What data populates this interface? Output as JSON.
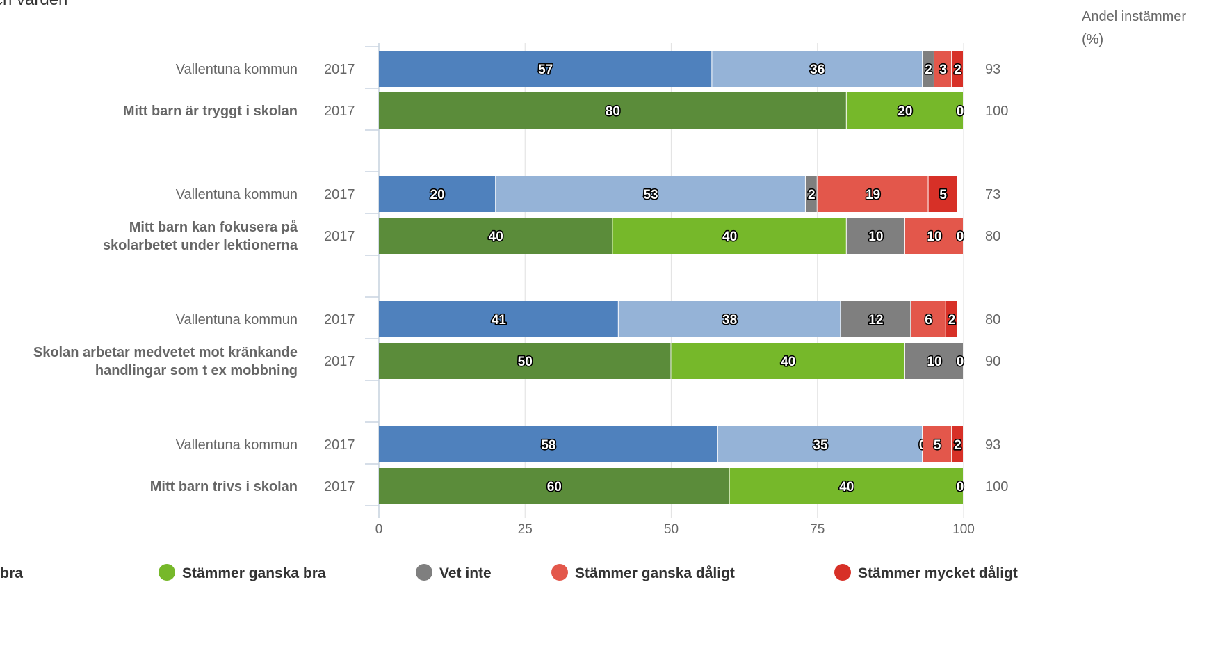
{
  "title": "ch värden",
  "pct_header": "Andel instämmer (%)",
  "colors": {
    "blue_dark": "#4f81bd",
    "blue_light": "#95b3d7",
    "green_dark": "#5b8c3a",
    "green_light": "#76b82a",
    "gray": "#7f7f7f",
    "red_light": "#e3574b",
    "red_dark": "#d73027",
    "grid": "#e4e4e4"
  },
  "chart_data": {
    "type": "bar",
    "orientation": "horizontal",
    "stacked": true,
    "xlim": [
      0,
      100
    ],
    "x_ticks": [
      "0",
      "25",
      "50",
      "75",
      "100"
    ],
    "grid": true,
    "legend_position": "bottom",
    "legend": [
      {
        "label": "mycket bra",
        "color": "#4f81bd"
      },
      {
        "label": "Stämmer ganska bra",
        "color": "#76b82a"
      },
      {
        "label": "Vet inte",
        "color": "#7f7f7f"
      },
      {
        "label": "Stämmer ganska dåligt",
        "color": "#e3574b"
      },
      {
        "label": "Stämmer mycket dåligt",
        "color": "#d73027"
      }
    ],
    "groups": [
      {
        "question": "Mitt barn är tryggt i skolan",
        "rows": [
          {
            "label": "Vallentuna kommun",
            "bold": false,
            "year": "2017",
            "palette": "blue",
            "values": [
              57,
              36,
              2,
              3,
              2
            ],
            "pct": "93"
          },
          {
            "label": "Mitt barn är tryggt i skolan",
            "bold": true,
            "year": "2017",
            "palette": "green",
            "values": [
              80,
              20,
              0,
              0,
              0
            ],
            "shown": [
              true,
              true,
              false,
              false,
              true
            ],
            "pct": "100"
          }
        ]
      },
      {
        "question": "Mitt barn kan fokusera på skolarbetet under lektionerna",
        "rows": [
          {
            "label": "Vallentuna kommun",
            "bold": false,
            "year": "2017",
            "palette": "blue",
            "values": [
              20,
              53,
              2,
              19,
              5
            ],
            "pct": "73"
          },
          {
            "label": "Mitt barn kan fokusera på|skolarbetet under lektionerna",
            "bold": true,
            "year": "2017",
            "palette": "green",
            "values": [
              40,
              40,
              10,
              10,
              0
            ],
            "pct": "80"
          }
        ]
      },
      {
        "question": "Skolan arbetar medvetet mot kränkande handlingar som t ex mobbning",
        "rows": [
          {
            "label": "Vallentuna kommun",
            "bold": false,
            "year": "2017",
            "palette": "blue",
            "values": [
              41,
              38,
              12,
              6,
              2
            ],
            "pct": "80"
          },
          {
            "label": "Skolan arbetar medvetet mot kränkande|handlingar som t ex mobbning",
            "bold": true,
            "year": "2017",
            "palette": "green",
            "values": [
              50,
              40,
              10,
              0,
              0
            ],
            "shown": [
              true,
              true,
              true,
              false,
              true
            ],
            "pct": "90"
          }
        ]
      },
      {
        "question": "Mitt barn trivs i skolan",
        "rows": [
          {
            "label": "Vallentuna kommun",
            "bold": false,
            "year": "2017",
            "palette": "blue",
            "values": [
              58,
              35,
              0,
              5,
              2
            ],
            "pct": "93"
          },
          {
            "label": "Mitt barn trivs i skolan",
            "bold": true,
            "year": "2017",
            "palette": "green",
            "values": [
              60,
              40,
              0,
              0,
              0
            ],
            "shown": [
              true,
              true,
              false,
              false,
              true
            ],
            "pct": "100"
          }
        ]
      }
    ]
  }
}
